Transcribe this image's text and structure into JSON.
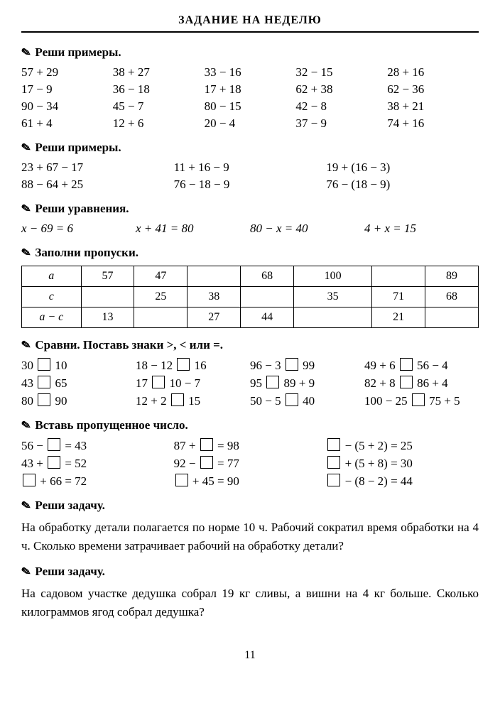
{
  "title": "ЗАДАНИЕ НА НЕДЕЛЮ",
  "sec1": {
    "head": "Реши примеры.",
    "rows": [
      [
        "57 + 29",
        "38 + 27",
        "33 − 16",
        "32 − 15",
        "28 + 16"
      ],
      [
        "17 − 9",
        "36 − 18",
        "17 + 18",
        "62 + 38",
        "62 − 36"
      ],
      [
        "90 − 34",
        "45 − 7",
        "80 − 15",
        "42 − 8",
        "38 + 21"
      ],
      [
        "61 + 4",
        "12 + 6",
        "20 − 4",
        "37 − 9",
        "74 + 16"
      ]
    ]
  },
  "sec2": {
    "head": "Реши примеры.",
    "rows": [
      [
        "23 + 67 − 17",
        "11 + 16 − 9",
        "19 + (16 − 3)"
      ],
      [
        "88 − 64 + 25",
        "76 − 18 − 9",
        "76 − (18 − 9)"
      ]
    ]
  },
  "sec3": {
    "head": "Реши уравнения.",
    "items": [
      "x − 69 = 6",
      "x + 41 = 80",
      "80 − x = 40",
      "4 + x = 15"
    ]
  },
  "sec4": {
    "head": "Заполни пропуски.",
    "table": {
      "r1": [
        "a",
        "57",
        "47",
        "",
        "68",
        "100",
        "",
        "89"
      ],
      "r2": [
        "c",
        "",
        "25",
        "38",
        "",
        "35",
        "71",
        "68"
      ],
      "r3": [
        "a − c",
        "13",
        "",
        "27",
        "44",
        "",
        "21",
        ""
      ]
    }
  },
  "sec5": {
    "head": "Сравни. Поставь знаки >, < или =.",
    "rows": [
      [
        [
          "30",
          "10"
        ],
        [
          "18 − 12",
          "16"
        ],
        [
          "96 − 3",
          "99"
        ],
        [
          "49 + 6",
          "56 − 4"
        ]
      ],
      [
        [
          "43",
          "65"
        ],
        [
          "17",
          "10 − 7"
        ],
        [
          "95",
          "89 + 9"
        ],
        [
          "82 + 8",
          "86 + 4"
        ]
      ],
      [
        [
          "80",
          "90"
        ],
        [
          "12 + 2",
          "15"
        ],
        [
          "50 − 5",
          "40"
        ],
        [
          "100 − 25",
          "75 + 5"
        ]
      ]
    ]
  },
  "sec6": {
    "head": "Вставь пропущенное число.",
    "rows": [
      [
        {
          "pre": "56 − ",
          "post": " = 43"
        },
        {
          "pre": "87 + ",
          "post": " = 98"
        },
        {
          "pre": "",
          "post": " − (5 + 2) = 25"
        }
      ],
      [
        {
          "pre": "43 + ",
          "post": " = 52"
        },
        {
          "pre": "92 − ",
          "post": " = 77"
        },
        {
          "pre": "",
          "post": " + (5 + 8) = 30"
        }
      ],
      [
        {
          "pre": "",
          "post": " + 66 = 72"
        },
        {
          "pre": "",
          "post": " + 45 = 90"
        },
        {
          "pre": "",
          "post": " − (8 − 2) = 44"
        }
      ]
    ]
  },
  "sec7": {
    "head": "Реши задачу.",
    "text": "На обработку детали полагается по норме 10 ч. Рабочий сократил время обработки на 4 ч. Сколько времени затрачивает рабочий на обработку детали?"
  },
  "sec8": {
    "head": "Реши задачу.",
    "text": "На садовом участке дедушка собрал 19 кг сливы, а вишни на 4 кг больше. Сколько килограммов ягод собрал дедушка?"
  },
  "pageNumber": "11"
}
